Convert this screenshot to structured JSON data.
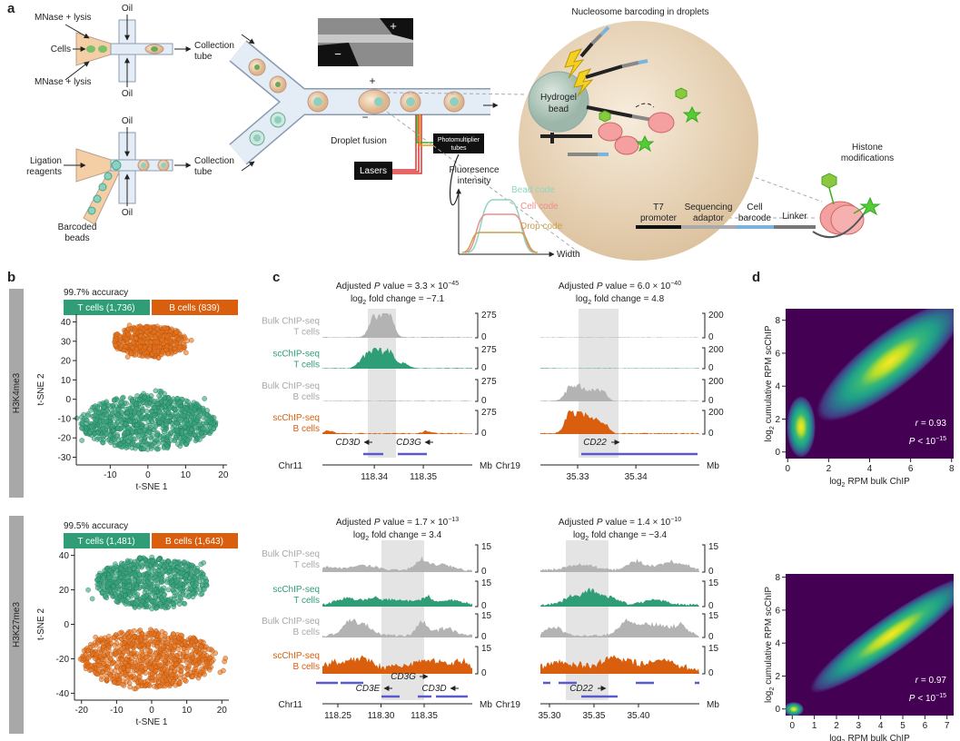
{
  "a": {
    "label": "a",
    "mnase_top": "MNase + lysis",
    "cells": "Cells",
    "oil_top": "Oil",
    "oil_bottom": "Oil",
    "collection_1": "Collection",
    "tube_1": "tube",
    "mnase_bottom": "MNase + lysis",
    "oil_2_top": "Oil",
    "ligation": "Ligation",
    "reagents": "reagents",
    "collection_2": "Collection",
    "tube_2": "tube",
    "barcoded": "Barcoded",
    "beads": "beads",
    "oil_2_bottom": "Oil",
    "inset_plus": "+",
    "inset_minus": "−",
    "fusion_plus": "+",
    "fusion_minus": "−",
    "droplet_fusion": "Droplet fusion",
    "pmt_1": "Photomultiplier",
    "pmt_2": "tubes",
    "lasers": "Lasers",
    "fluorescence_1": "Fluoresence",
    "fluorescence_2": "intensity",
    "bead_code": "Bead code",
    "cell_code": "Cell code",
    "drop_code": "Drop code",
    "width": "Width",
    "barcoding_title": "Nucleosome barcoding in droplets",
    "hydrogel_1": "Hydrogel",
    "hydrogel_2": "bead",
    "histone_1": "Histone",
    "histone_2": "modifications",
    "t7_1": "T7",
    "t7_2": "promoter",
    "seq_1": "Sequencing",
    "seq_2": "adaptor",
    "cell_1": "Cell",
    "cell_2": "barcode",
    "linker": "Linker"
  },
  "b": {
    "label": "b",
    "panels": [
      {
        "mark": "H3K4me3",
        "accuracy": "99.7% accuracy",
        "t_cells": "T cells (1,736)",
        "b_cells": "B cells (839)",
        "ylabel": "t-SNE 2",
        "xlabel": "t-SNE 1",
        "xlim": [
          -19,
          21
        ],
        "ylim": [
          -34,
          44
        ],
        "xticks": [
          -10,
          0,
          10,
          20
        ],
        "yticks": [
          40,
          30,
          20,
          10,
          0,
          -10,
          -20,
          -30
        ]
      },
      {
        "mark": "H3K27me3",
        "accuracy": "99.5% accuracy",
        "t_cells": "T cells (1,481)",
        "b_cells": "B cells (1,643)",
        "ylabel": "t-SNE 2",
        "xlabel": "t-SNE 1",
        "xlim": [
          -22,
          22
        ],
        "ylim": [
          -44,
          44
        ],
        "xticks": [
          -20,
          -10,
          0,
          10,
          20
        ],
        "yticks": [
          40,
          20,
          0,
          -20,
          -40
        ]
      }
    ]
  },
  "c": {
    "label": "c",
    "track_labels": [
      {
        "assay": "Bulk ChIP-seq",
        "cells": "T cells"
      },
      {
        "assay": "scChIP-seq",
        "cells": "T cells"
      },
      {
        "assay": "Bulk ChIP-seq",
        "cells": "B cells"
      },
      {
        "assay": "scChIP-seq",
        "cells": "B cells"
      }
    ],
    "groups": [
      {
        "title": {
          "pre": "Adjusted",
          "p": "P",
          "mid": "value = 3.3 × 10",
          "exp": "−45"
        },
        "fold": {
          "log": "log",
          "sub": "2",
          "rest": "fold change = −7.1"
        },
        "scale_max": 275,
        "scale_min": 0,
        "genes": [
          "CD3D",
          "CD3G"
        ],
        "chr": "Chr11",
        "unit": "Mb",
        "xlim": [
          118.3294,
          118.36
        ],
        "xticks": [
          118.34,
          118.35
        ]
      },
      {
        "title": {
          "pre": "Adjusted",
          "p": "P",
          "mid": "value = 6.0 × 10",
          "exp": "−40"
        },
        "fold": {
          "log": "log",
          "sub": "2",
          "rest": "fold change = 4.8"
        },
        "scale_max": 200,
        "scale_min": 0,
        "genes": [
          "CD22"
        ],
        "chr": "Chr19",
        "unit": "Mb",
        "xlim": [
          35.3236,
          35.3509
        ],
        "xticks": [
          35.33,
          35.34
        ]
      },
      {
        "title": {
          "pre": "Adjusted",
          "p": "P",
          "mid": "value = 1.7 × 10",
          "exp": "−13"
        },
        "fold": {
          "log": "log",
          "sub": "2",
          "rest": "fold change = 3.4"
        },
        "scale_max": 15,
        "scale_min": 0,
        "genes": [
          "CD3G",
          "CD3E",
          "CD3D"
        ],
        "chr": "Chr11",
        "unit": "Mb",
        "xlim": [
          118.2321,
          118.4058
        ],
        "xticks": [
          118.25,
          {
            "value": 118.3,
            "label": "118.30"
          },
          118.35
        ]
      },
      {
        "title": {
          "pre": "Adjusted",
          "p": "P",
          "mid": "value = 1.4 × 10",
          "exp": "−10"
        },
        "fold": {
          "log": "log",
          "sub": "2",
          "rest": "fold change = −3.4"
        },
        "scale_max": 15,
        "scale_min": 0,
        "genes": [
          "CD22"
        ],
        "chr": "Chr19",
        "unit": "Mb",
        "xlim": [
          35.2898,
          35.4684
        ],
        "xticks": [
          {
            "value": 35.3,
            "label": "35.30"
          },
          35.35,
          {
            "value": 35.4,
            "label": "35.40"
          }
        ]
      }
    ]
  },
  "d": {
    "label": "d",
    "ylabel": {
      "log": "log",
      "sub": "2",
      "rest": "cumulative RPM scChIP"
    },
    "xlabel": {
      "log": "log",
      "sub": "2",
      "rest": "RPM bulk ChIP"
    },
    "p": {
      "sym": "P",
      "text": "< 10",
      "exp": "−15"
    },
    "plots": [
      {
        "r": {
          "sym": "r",
          "text": "= 0.93"
        },
        "xlim": [
          -0.1,
          8.1
        ],
        "ylim": [
          -0.4,
          8.7
        ],
        "xticks": [
          0,
          2,
          4,
          6,
          8
        ],
        "yticks": [
          0,
          2,
          4,
          6,
          8
        ]
      },
      {
        "r": {
          "sym": "r",
          "text": "= 0.97"
        },
        "xlim": [
          -0.3,
          7.3
        ],
        "ylim": [
          -0.4,
          8.2
        ],
        "xticks": [
          0,
          1,
          2,
          3,
          4,
          5,
          6,
          7
        ],
        "yticks": [
          0,
          2,
          4,
          6,
          8
        ]
      }
    ]
  }
}
